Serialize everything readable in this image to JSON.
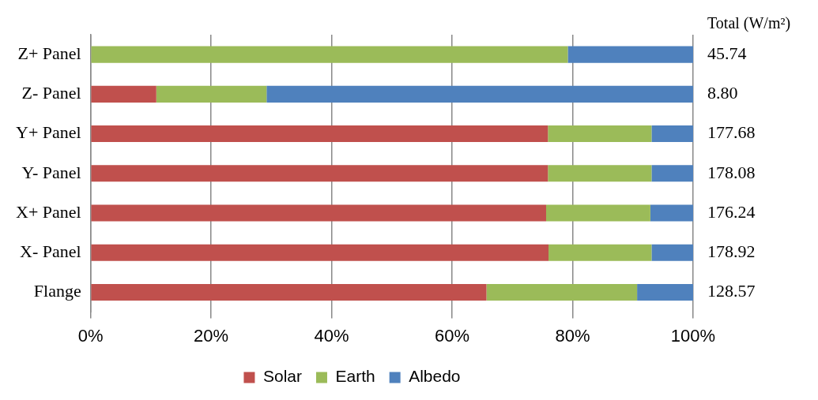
{
  "chart_data": {
    "type": "bar",
    "orientation": "horizontal",
    "stacked": true,
    "categories": [
      "Z+ Panel",
      "Z- Panel",
      "Y+ Panel",
      "Y- Panel",
      "X+ Panel",
      "X- Panel",
      "Flange"
    ],
    "series": [
      {
        "name": "Solar",
        "color": "#c0504d",
        "values": [
          0,
          10.9,
          75.9,
          75.9,
          75.6,
          76.0,
          65.7
        ]
      },
      {
        "name": "Earth",
        "color": "#9bbb59",
        "values": [
          79.2,
          18.3,
          17.2,
          17.2,
          17.3,
          17.1,
          25.0
        ]
      },
      {
        "name": "Albedo",
        "color": "#4f81bd",
        "values": [
          20.8,
          70.8,
          6.9,
          6.9,
          7.1,
          6.9,
          9.3
        ]
      }
    ],
    "xlim": [
      0,
      100
    ],
    "xticks": [
      {
        "value": 0,
        "label": "0%"
      },
      {
        "value": 20,
        "label": "20%"
      },
      {
        "value": 40,
        "label": "40%"
      },
      {
        "value": 60,
        "label": "60%"
      },
      {
        "value": 80,
        "label": "80%"
      },
      {
        "value": 100,
        "label": "100%"
      }
    ],
    "annotations": [
      "Total (W/m²)",
      "45.74",
      "8.80",
      "177.68",
      "178.08",
      "176.24",
      "178.92",
      "128.57"
    ],
    "grid": "x",
    "legend": "bottom"
  }
}
